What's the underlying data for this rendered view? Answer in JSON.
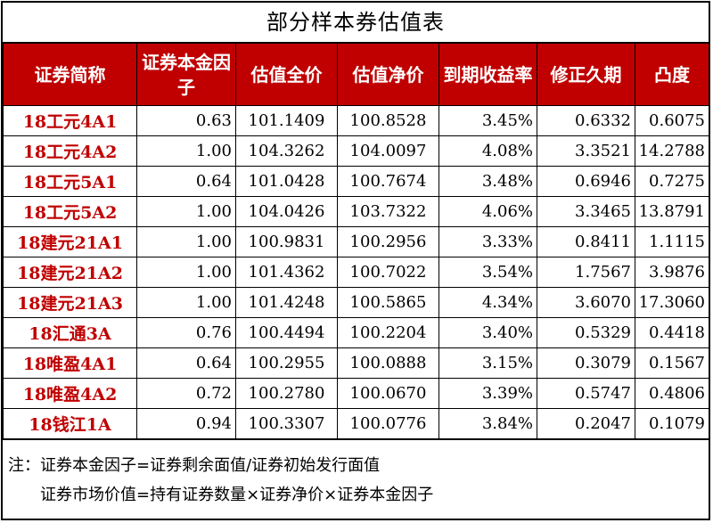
{
  "title": "部分样本券估值表",
  "columns": [
    "证券简称",
    "证券本金因子",
    "估值全价",
    "估值净价",
    "到期收益率",
    "修正久期",
    "凸度"
  ],
  "rows": [
    [
      "18工元4A1",
      "0.63",
      "101.1409",
      "100.8528",
      "3.45%",
      "0.6332",
      "0.6075"
    ],
    [
      "18工元4A2",
      "1.00",
      "104.3262",
      "104.0097",
      "4.08%",
      "3.3521",
      "14.2788"
    ],
    [
      "18工元5A1",
      "0.64",
      "101.0428",
      "100.7674",
      "3.48%",
      "0.6946",
      "0.7275"
    ],
    [
      "18工元5A2",
      "1.00",
      "104.0426",
      "103.7322",
      "4.06%",
      "3.3465",
      "13.8791"
    ],
    [
      "18建元21A1",
      "1.00",
      "100.9831",
      "100.2956",
      "3.33%",
      "0.8411",
      "1.1115"
    ],
    [
      "18建元21A2",
      "1.00",
      "101.4362",
      "100.7022",
      "3.54%",
      "1.7567",
      "3.9876"
    ],
    [
      "18建元21A3",
      "1.00",
      "101.4248",
      "100.5865",
      "4.34%",
      "3.6070",
      "17.3060"
    ],
    [
      "18汇通3A",
      "0.76",
      "100.4494",
      "100.2204",
      "3.40%",
      "0.5329",
      "0.4418"
    ],
    [
      "18唯盈4A1",
      "0.64",
      "100.2955",
      "100.0888",
      "3.15%",
      "0.3079",
      "0.1567"
    ],
    [
      "18唯盈4A2",
      "0.72",
      "100.2780",
      "100.0670",
      "3.39%",
      "0.5747",
      "0.4806"
    ],
    [
      "18钱江1A",
      "0.94",
      "100.3307",
      "100.0776",
      "3.84%",
      "0.2047",
      "0.1079"
    ]
  ],
  "notes": {
    "line1": "注：证券本金因子=证券剩余面值/证券初始发行面值",
    "line2": "证券市场价值=持有证券数量×证券净价×证券本金因子"
  },
  "colors": {
    "header_bg": "#c00000",
    "name_text": "#c00000"
  }
}
